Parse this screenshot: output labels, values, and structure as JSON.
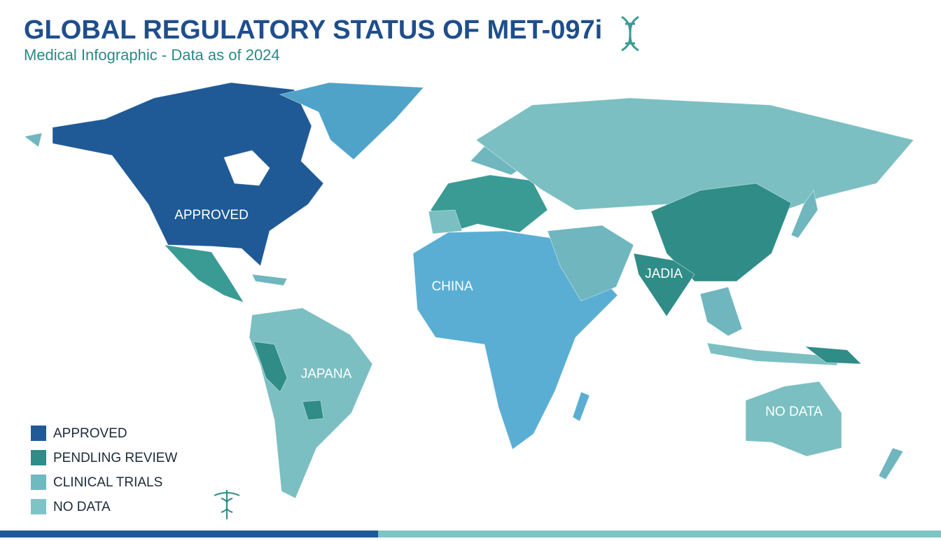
{
  "header": {
    "title": "GLOBAL REGULATORY STATUS OF MET-097i",
    "subtitle": "Medical Infographic - Data as of 2024"
  },
  "map_labels": [
    "APPROVED",
    "CHINA",
    "JAPANA",
    "JADIA",
    "NO DATA"
  ],
  "legend": {
    "items": [
      {
        "label": "APPROVED",
        "color": "#1f5a96"
      },
      {
        "label": "PENDLING REVIEW",
        "color": "#2f8c87"
      },
      {
        "label": "CLINICAL TRIALS",
        "color": "#6fbac0"
      },
      {
        "label": "NO DATA",
        "color": "#7ec3c6"
      }
    ]
  }
}
